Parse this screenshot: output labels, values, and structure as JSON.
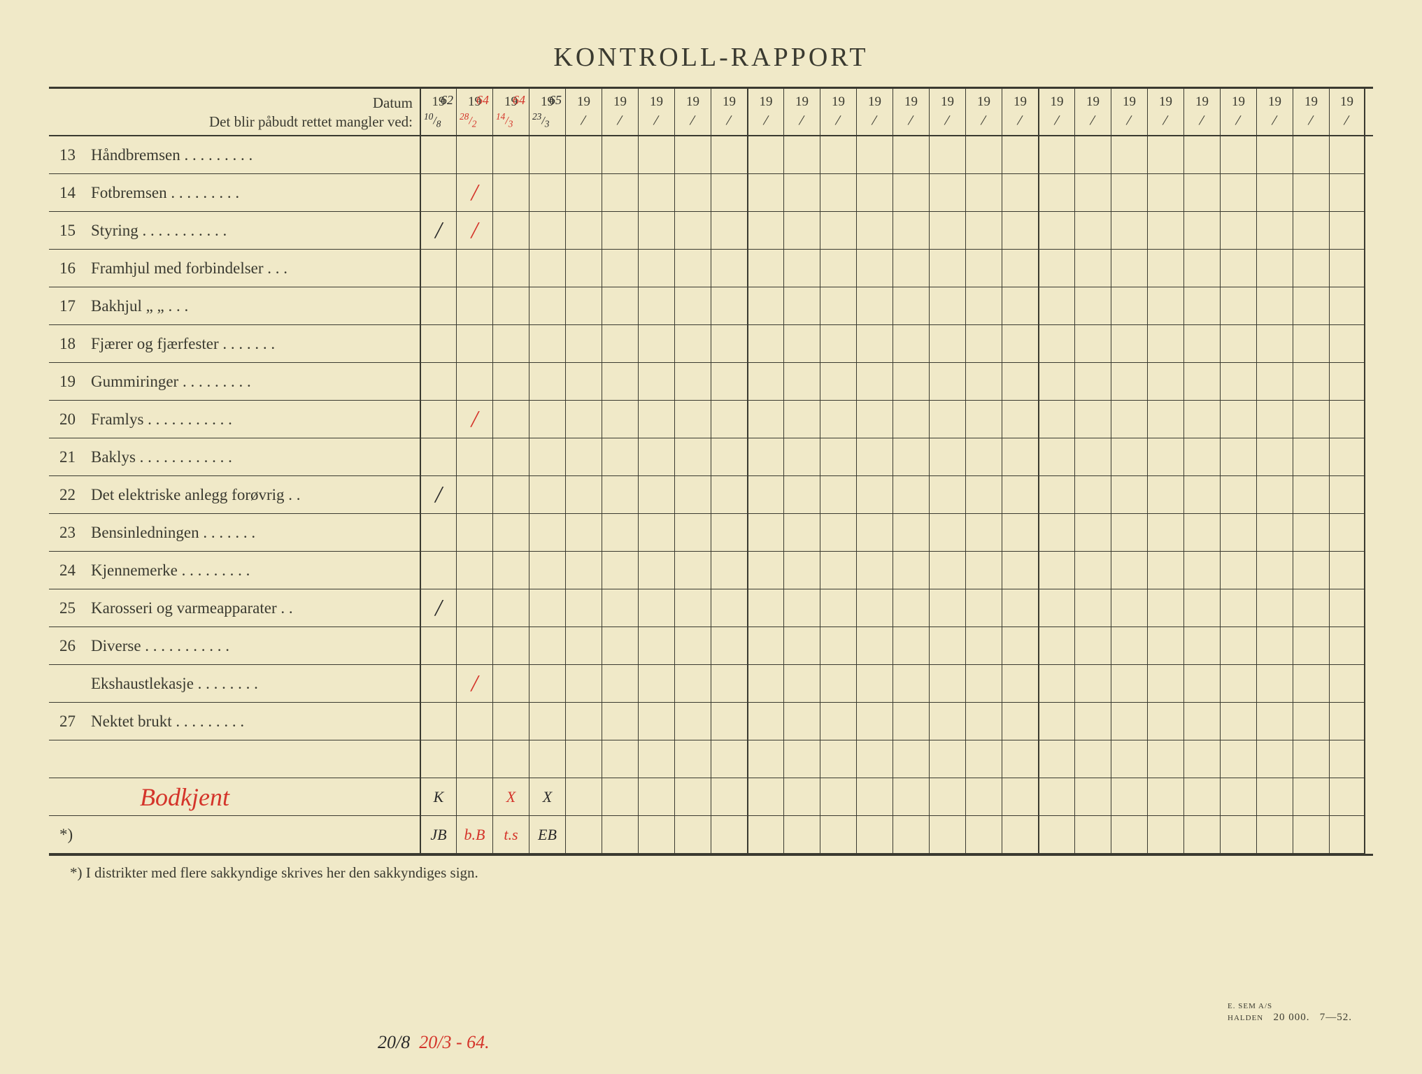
{
  "title": "KONTROLL-RAPPORT",
  "header": {
    "datum_label": "Datum",
    "mangler_label": "Det blir påbudt rettet mangler ved:"
  },
  "colors": {
    "paper": "#f0e9c8",
    "ink": "#3a3a30",
    "red_pen": "#d4342a",
    "dark_pen": "#2a2a2a",
    "border": "#000000"
  },
  "date_columns": [
    {
      "year_prefix": "19",
      "year_suffix": "62",
      "year_color": "dark",
      "sub_left": "10",
      "sub_right": "8",
      "sub_color": "dark"
    },
    {
      "year_prefix": "19",
      "year_suffix": "64",
      "year_color": "red",
      "sub_left": "28",
      "sub_right": "2",
      "sub_color": "red"
    },
    {
      "year_prefix": "19",
      "year_suffix": "64",
      "year_color": "red",
      "sub_left": "14",
      "sub_right": "3",
      "sub_color": "red"
    },
    {
      "year_prefix": "19",
      "year_suffix": "65",
      "year_color": "dark",
      "sub_left": "23",
      "sub_right": "3",
      "sub_color": "dark"
    },
    {
      "year_prefix": "19",
      "year_suffix": "",
      "year_color": "",
      "sub_left": "",
      "sub_right": "",
      "sub_color": ""
    },
    {
      "year_prefix": "19",
      "year_suffix": "",
      "year_color": "",
      "sub_left": "",
      "sub_right": "",
      "sub_color": ""
    },
    {
      "year_prefix": "19",
      "year_suffix": "",
      "year_color": "",
      "sub_left": "",
      "sub_right": "",
      "sub_color": ""
    },
    {
      "year_prefix": "19",
      "year_suffix": "",
      "year_color": "",
      "sub_left": "",
      "sub_right": "",
      "sub_color": ""
    },
    {
      "year_prefix": "19",
      "year_suffix": "",
      "year_color": "",
      "sub_left": "",
      "sub_right": "",
      "sub_color": ""
    },
    {
      "year_prefix": "19",
      "year_suffix": "",
      "year_color": "",
      "sub_left": "",
      "sub_right": "",
      "sub_color": ""
    },
    {
      "year_prefix": "19",
      "year_suffix": "",
      "year_color": "",
      "sub_left": "",
      "sub_right": "",
      "sub_color": ""
    },
    {
      "year_prefix": "19",
      "year_suffix": "",
      "year_color": "",
      "sub_left": "",
      "sub_right": "",
      "sub_color": ""
    },
    {
      "year_prefix": "19",
      "year_suffix": "",
      "year_color": "",
      "sub_left": "",
      "sub_right": "",
      "sub_color": ""
    },
    {
      "year_prefix": "19",
      "year_suffix": "",
      "year_color": "",
      "sub_left": "",
      "sub_right": "",
      "sub_color": ""
    },
    {
      "year_prefix": "19",
      "year_suffix": "",
      "year_color": "",
      "sub_left": "",
      "sub_right": "",
      "sub_color": ""
    },
    {
      "year_prefix": "19",
      "year_suffix": "",
      "year_color": "",
      "sub_left": "",
      "sub_right": "",
      "sub_color": ""
    },
    {
      "year_prefix": "19",
      "year_suffix": "",
      "year_color": "",
      "sub_left": "",
      "sub_right": "",
      "sub_color": ""
    },
    {
      "year_prefix": "19",
      "year_suffix": "",
      "year_color": "",
      "sub_left": "",
      "sub_right": "",
      "sub_color": ""
    },
    {
      "year_prefix": "19",
      "year_suffix": "",
      "year_color": "",
      "sub_left": "",
      "sub_right": "",
      "sub_color": ""
    },
    {
      "year_prefix": "19",
      "year_suffix": "",
      "year_color": "",
      "sub_left": "",
      "sub_right": "",
      "sub_color": ""
    },
    {
      "year_prefix": "19",
      "year_suffix": "",
      "year_color": "",
      "sub_left": "",
      "sub_right": "",
      "sub_color": ""
    },
    {
      "year_prefix": "19",
      "year_suffix": "",
      "year_color": "",
      "sub_left": "",
      "sub_right": "",
      "sub_color": ""
    },
    {
      "year_prefix": "19",
      "year_suffix": "",
      "year_color": "",
      "sub_left": "",
      "sub_right": "",
      "sub_color": ""
    },
    {
      "year_prefix": "19",
      "year_suffix": "",
      "year_color": "",
      "sub_left": "",
      "sub_right": "",
      "sub_color": ""
    },
    {
      "year_prefix": "19",
      "year_suffix": "",
      "year_color": "",
      "sub_left": "",
      "sub_right": "",
      "sub_color": ""
    },
    {
      "year_prefix": "19",
      "year_suffix": "",
      "year_color": "",
      "sub_left": "",
      "sub_right": "",
      "sub_color": ""
    }
  ],
  "rows": [
    {
      "num": "13",
      "label": "Håndbremsen  .   .   .   .   .   .   .   .   .",
      "cells": [
        "",
        "",
        "",
        "",
        "",
        "",
        "",
        "",
        "",
        "",
        "",
        "",
        "",
        "",
        "",
        "",
        "",
        "",
        "",
        "",
        "",
        "",
        "",
        "",
        "",
        ""
      ],
      "colors": [
        "",
        "",
        "",
        "",
        "",
        "",
        "",
        "",
        "",
        "",
        "",
        "",
        "",
        "",
        "",
        "",
        "",
        "",
        "",
        "",
        "",
        "",
        "",
        "",
        "",
        ""
      ]
    },
    {
      "num": "14",
      "label": "Fotbremsen    .   .   .   .   .   .   .   .   .",
      "cells": [
        "",
        "/",
        "",
        "",
        "",
        "",
        "",
        "",
        "",
        "",
        "",
        "",
        "",
        "",
        "",
        "",
        "",
        "",
        "",
        "",
        "",
        "",
        "",
        "",
        "",
        ""
      ],
      "colors": [
        "",
        "red",
        "",
        "",
        "",
        "",
        "",
        "",
        "",
        "",
        "",
        "",
        "",
        "",
        "",
        "",
        "",
        "",
        "",
        "",
        "",
        "",
        "",
        "",
        "",
        ""
      ]
    },
    {
      "num": "15",
      "label": "Styring   .   .   .   .   .   .   .   .   .   .   .",
      "cells": [
        "/",
        "/",
        "",
        "",
        "",
        "",
        "",
        "",
        "",
        "",
        "",
        "",
        "",
        "",
        "",
        "",
        "",
        "",
        "",
        "",
        "",
        "",
        "",
        "",
        "",
        ""
      ],
      "colors": [
        "dark",
        "red",
        "",
        "",
        "",
        "",
        "",
        "",
        "",
        "",
        "",
        "",
        "",
        "",
        "",
        "",
        "",
        "",
        "",
        "",
        "",
        "",
        "",
        "",
        "",
        ""
      ]
    },
    {
      "num": "16",
      "label": "Framhjul med forbindelser .       .       .",
      "cells": [
        "",
        "",
        "",
        "",
        "",
        "",
        "",
        "",
        "",
        "",
        "",
        "",
        "",
        "",
        "",
        "",
        "",
        "",
        "",
        "",
        "",
        "",
        "",
        "",
        "",
        ""
      ],
      "colors": [
        "",
        "",
        "",
        "",
        "",
        "",
        "",
        "",
        "",
        "",
        "",
        "",
        "",
        "",
        "",
        "",
        "",
        "",
        "",
        "",
        "",
        "",
        "",
        "",
        "",
        ""
      ]
    },
    {
      "num": "17",
      "label": "Bakhjul        „              „          .   .   .",
      "cells": [
        "",
        "",
        "",
        "",
        "",
        "",
        "",
        "",
        "",
        "",
        "",
        "",
        "",
        "",
        "",
        "",
        "",
        "",
        "",
        "",
        "",
        "",
        "",
        "",
        "",
        ""
      ],
      "colors": [
        "",
        "",
        "",
        "",
        "",
        "",
        "",
        "",
        "",
        "",
        "",
        "",
        "",
        "",
        "",
        "",
        "",
        "",
        "",
        "",
        "",
        "",
        "",
        "",
        "",
        ""
      ]
    },
    {
      "num": "18",
      "label": "Fjærer og fjærfester  .   .   .   .   .   .   .",
      "cells": [
        "",
        "",
        "",
        "",
        "",
        "",
        "",
        "",
        "",
        "",
        "",
        "",
        "",
        "",
        "",
        "",
        "",
        "",
        "",
        "",
        "",
        "",
        "",
        "",
        "",
        ""
      ],
      "colors": [
        "",
        "",
        "",
        "",
        "",
        "",
        "",
        "",
        "",
        "",
        "",
        "",
        "",
        "",
        "",
        "",
        "",
        "",
        "",
        "",
        "",
        "",
        "",
        "",
        "",
        ""
      ]
    },
    {
      "num": "19",
      "label": "Gummiringer .   .   .   .   .   .   .   .   .",
      "cells": [
        "",
        "",
        "",
        "",
        "",
        "",
        "",
        "",
        "",
        "",
        "",
        "",
        "",
        "",
        "",
        "",
        "",
        "",
        "",
        "",
        "",
        "",
        "",
        "",
        "",
        ""
      ],
      "colors": [
        "",
        "",
        "",
        "",
        "",
        "",
        "",
        "",
        "",
        "",
        "",
        "",
        "",
        "",
        "",
        "",
        "",
        "",
        "",
        "",
        "",
        "",
        "",
        "",
        "",
        ""
      ]
    },
    {
      "num": "20",
      "label": "Framlys  .   .   .   .   .   .   .   .   .   .   .",
      "cells": [
        "",
        "/",
        "",
        "",
        "",
        "",
        "",
        "",
        "",
        "",
        "",
        "",
        "",
        "",
        "",
        "",
        "",
        "",
        "",
        "",
        "",
        "",
        "",
        "",
        "",
        ""
      ],
      "colors": [
        "",
        "red",
        "",
        "",
        "",
        "",
        "",
        "",
        "",
        "",
        "",
        "",
        "",
        "",
        "",
        "",
        "",
        "",
        "",
        "",
        "",
        "",
        "",
        "",
        "",
        ""
      ]
    },
    {
      "num": "21",
      "label": "Baklys .   .   .   .   .   .   .   .   .   .   .   .",
      "cells": [
        "",
        "",
        "",
        "",
        "",
        "",
        "",
        "",
        "",
        "",
        "",
        "",
        "",
        "",
        "",
        "",
        "",
        "",
        "",
        "",
        "",
        "",
        "",
        "",
        "",
        ""
      ],
      "colors": [
        "",
        "",
        "",
        "",
        "",
        "",
        "",
        "",
        "",
        "",
        "",
        "",
        "",
        "",
        "",
        "",
        "",
        "",
        "",
        "",
        "",
        "",
        "",
        "",
        "",
        ""
      ]
    },
    {
      "num": "22",
      "label": "Det elektriske anlegg forøvrig  .   .",
      "cells": [
        "/",
        "",
        "",
        "",
        "",
        "",
        "",
        "",
        "",
        "",
        "",
        "",
        "",
        "",
        "",
        "",
        "",
        "",
        "",
        "",
        "",
        "",
        "",
        "",
        "",
        ""
      ],
      "colors": [
        "dark",
        "",
        "",
        "",
        "",
        "",
        "",
        "",
        "",
        "",
        "",
        "",
        "",
        "",
        "",
        "",
        "",
        "",
        "",
        "",
        "",
        "",
        "",
        "",
        "",
        ""
      ]
    },
    {
      "num": "23",
      "label": "Bensinledningen    .   .   .   .   .   .   .",
      "cells": [
        "",
        "",
        "",
        "",
        "",
        "",
        "",
        "",
        "",
        "",
        "",
        "",
        "",
        "",
        "",
        "",
        "",
        "",
        "",
        "",
        "",
        "",
        "",
        "",
        "",
        ""
      ],
      "colors": [
        "",
        "",
        "",
        "",
        "",
        "",
        "",
        "",
        "",
        "",
        "",
        "",
        "",
        "",
        "",
        "",
        "",
        "",
        "",
        "",
        "",
        "",
        "",
        "",
        "",
        ""
      ]
    },
    {
      "num": "24",
      "label": "Kjennemerke  .   .   .   .   .   .   .   .   .",
      "cells": [
        "",
        "",
        "",
        "",
        "",
        "",
        "",
        "",
        "",
        "",
        "",
        "",
        "",
        "",
        "",
        "",
        "",
        "",
        "",
        "",
        "",
        "",
        "",
        "",
        "",
        ""
      ],
      "colors": [
        "",
        "",
        "",
        "",
        "",
        "",
        "",
        "",
        "",
        "",
        "",
        "",
        "",
        "",
        "",
        "",
        "",
        "",
        "",
        "",
        "",
        "",
        "",
        "",
        "",
        ""
      ]
    },
    {
      "num": "25",
      "label": "Karosseri og varmeapparater  .   .",
      "cells": [
        "/",
        "",
        "",
        "",
        "",
        "",
        "",
        "",
        "",
        "",
        "",
        "",
        "",
        "",
        "",
        "",
        "",
        "",
        "",
        "",
        "",
        "",
        "",
        "",
        "",
        ""
      ],
      "colors": [
        "dark",
        "",
        "",
        "",
        "",
        "",
        "",
        "",
        "",
        "",
        "",
        "",
        "",
        "",
        "",
        "",
        "",
        "",
        "",
        "",
        "",
        "",
        "",
        "",
        "",
        ""
      ]
    },
    {
      "num": "26",
      "label": "Diverse  .   .   .   .   .   .   .   .   .   .   .",
      "cells": [
        "",
        "",
        "",
        "",
        "",
        "",
        "",
        "",
        "",
        "",
        "",
        "",
        "",
        "",
        "",
        "",
        "",
        "",
        "",
        "",
        "",
        "",
        "",
        "",
        "",
        ""
      ],
      "colors": [
        "",
        "",
        "",
        "",
        "",
        "",
        "",
        "",
        "",
        "",
        "",
        "",
        "",
        "",
        "",
        "",
        "",
        "",
        "",
        "",
        "",
        "",
        "",
        "",
        "",
        ""
      ]
    },
    {
      "num": "",
      "label": "Ekshaustlekasje  .   .   .   .   .   .   .   .",
      "cells": [
        "",
        "/",
        "",
        "",
        "",
        "",
        "",
        "",
        "",
        "",
        "",
        "",
        "",
        "",
        "",
        "",
        "",
        "",
        "",
        "",
        "",
        "",
        "",
        "",
        "",
        ""
      ],
      "colors": [
        "",
        "red",
        "",
        "",
        "",
        "",
        "",
        "",
        "",
        "",
        "",
        "",
        "",
        "",
        "",
        "",
        "",
        "",
        "",
        "",
        "",
        "",
        "",
        "",
        "",
        ""
      ]
    },
    {
      "num": "27",
      "label": "Nektet brukt  .   .   .   .   .   .   .   .   .",
      "cells": [
        "",
        "",
        "",
        "",
        "",
        "",
        "",
        "",
        "",
        "",
        "",
        "",
        "",
        "",
        "",
        "",
        "",
        "",
        "",
        "",
        "",
        "",
        "",
        "",
        "",
        ""
      ],
      "colors": [
        "",
        "",
        "",
        "",
        "",
        "",
        "",
        "",
        "",
        "",
        "",
        "",
        "",
        "",
        "",
        "",
        "",
        "",
        "",
        "",
        "",
        "",
        "",
        "",
        "",
        ""
      ]
    },
    {
      "num": "",
      "label": "",
      "cells": [
        "",
        "",
        "",
        "",
        "",
        "",
        "",
        "",
        "",
        "",
        "",
        "",
        "",
        "",
        "",
        "",
        "",
        "",
        "",
        "",
        "",
        "",
        "",
        "",
        "",
        ""
      ],
      "colors": [
        "",
        "",
        "",
        "",
        "",
        "",
        "",
        "",
        "",
        "",
        "",
        "",
        "",
        "",
        "",
        "",
        "",
        "",
        "",
        "",
        "",
        "",
        "",
        "",
        "",
        ""
      ]
    }
  ],
  "signature_row": {
    "signature": "Bodkjent",
    "signature_color": "red",
    "cells": [
      "K",
      "",
      "X",
      "X",
      "",
      "",
      "",
      "",
      "",
      "",
      "",
      "",
      "",
      "",
      "",
      "",
      "",
      "",
      "",
      "",
      "",
      "",
      "",
      "",
      "",
      ""
    ],
    "colors": [
      "dark",
      "",
      "red",
      "dark",
      "",
      "",
      "",
      "",
      "",
      "",
      "",
      "",
      "",
      "",
      "",
      "",
      "",
      "",
      "",
      "",
      "",
      "",
      "",
      "",
      "",
      ""
    ]
  },
  "initials_row": {
    "star_label": "*)",
    "cells": [
      "JB",
      "b.B",
      "t.s",
      "EB",
      "",
      "",
      "",
      "",
      "",
      "",
      "",
      "",
      "",
      "",
      "",
      "",
      "",
      "",
      "",
      "",
      "",
      "",
      "",
      "",
      "",
      ""
    ],
    "colors": [
      "dark",
      "red",
      "red",
      "dark",
      "",
      "",
      "",
      "",
      "",
      "",
      "",
      "",
      "",
      "",
      "",
      "",
      "",
      "",
      "",
      "",
      "",
      "",
      "",
      "",
      "",
      ""
    ]
  },
  "footnote": "*)   I distrikter med flere sakkyndige skrives her den sakkyndiges sign.",
  "printer": {
    "line1": "E. SEM A/S",
    "line2": "HALDEN",
    "qty": "20 000.",
    "code": "7—52."
  },
  "bottom_handwriting": {
    "part1": "20/8",
    "part1_color": "dark",
    "part2": "20/3 - 64.",
    "part2_color": "red"
  }
}
